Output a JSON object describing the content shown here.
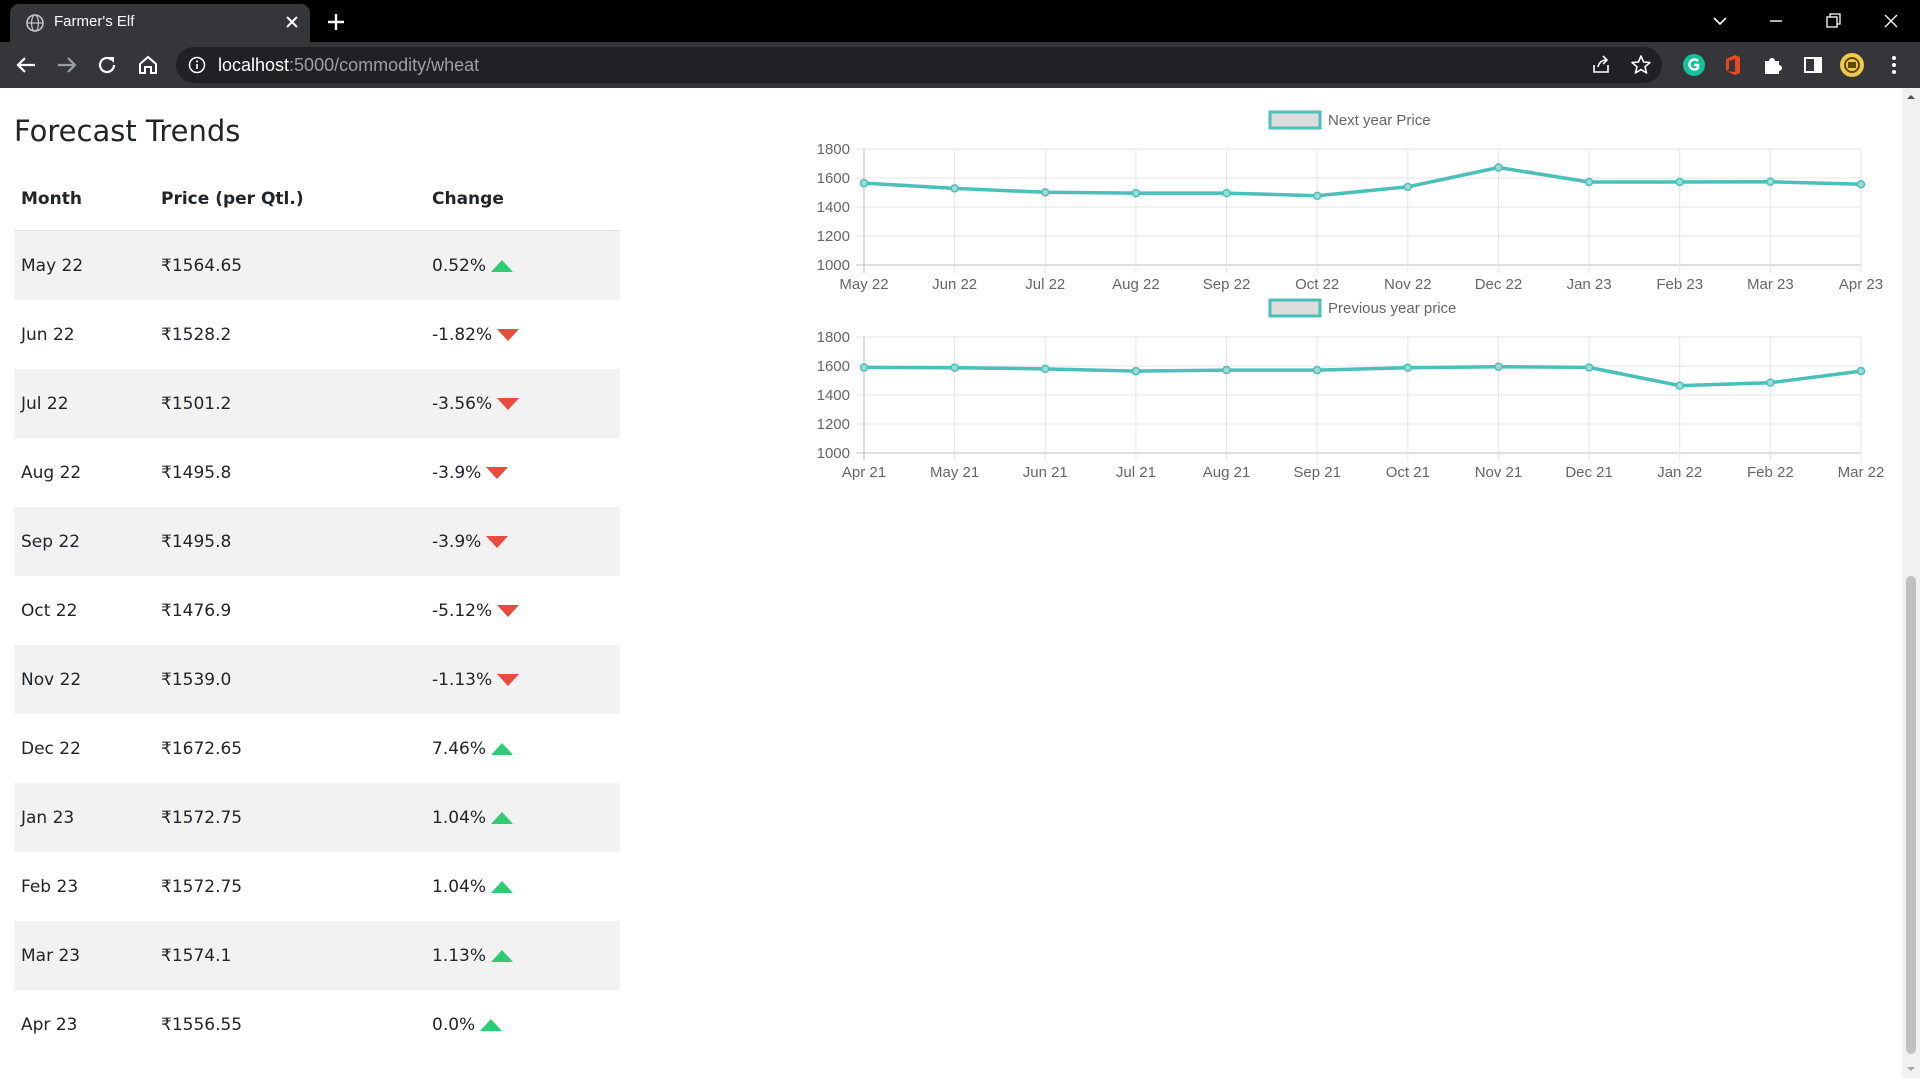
{
  "browser": {
    "tab_title": "Farmer's Elf",
    "url_host": "localhost",
    "url_path": ":5000/commodity/wheat"
  },
  "page": {
    "heading": "Forecast Trends",
    "table": {
      "headers": [
        "Month",
        "Price (per Qtl.)",
        "Change"
      ],
      "rows": [
        {
          "month": "May 22",
          "price": "₹1564.65",
          "change": "0.52%",
          "direction": "up"
        },
        {
          "month": "Jun 22",
          "price": "₹1528.2",
          "change": "-1.82%",
          "direction": "down"
        },
        {
          "month": "Jul 22",
          "price": "₹1501.2",
          "change": "-3.56%",
          "direction": "down"
        },
        {
          "month": "Aug 22",
          "price": "₹1495.8",
          "change": "-3.9%",
          "direction": "down"
        },
        {
          "month": "Sep 22",
          "price": "₹1495.8",
          "change": "-3.9%",
          "direction": "down"
        },
        {
          "month": "Oct 22",
          "price": "₹1476.9",
          "change": "-5.12%",
          "direction": "down"
        },
        {
          "month": "Nov 22",
          "price": "₹1539.0",
          "change": "-1.13%",
          "direction": "down"
        },
        {
          "month": "Dec 22",
          "price": "₹1672.65",
          "change": "7.46%",
          "direction": "up"
        },
        {
          "month": "Jan 23",
          "price": "₹1572.75",
          "change": "1.04%",
          "direction": "up"
        },
        {
          "month": "Feb 23",
          "price": "₹1572.75",
          "change": "1.04%",
          "direction": "up"
        },
        {
          "month": "Mar 23",
          "price": "₹1574.1",
          "change": "1.13%",
          "direction": "up"
        },
        {
          "month": "Apr 23",
          "price": "₹1556.55",
          "change": "0.0%",
          "direction": "up"
        }
      ]
    }
  },
  "colors": {
    "series": "#4bbfba",
    "up": "#2ecc71",
    "down": "#e74c3c"
  },
  "chart_data": [
    {
      "type": "line",
      "legend": "Next year Price",
      "legend_position": "top",
      "grid": true,
      "x": [
        "May 22",
        "Jun 22",
        "Jul 22",
        "Aug 22",
        "Sep 22",
        "Oct 22",
        "Nov 22",
        "Dec 22",
        "Jan 23",
        "Feb 23",
        "Mar 23",
        "Apr 23"
      ],
      "series": [
        {
          "name": "Next year Price",
          "values": [
            1564.65,
            1528.2,
            1501.2,
            1495.8,
            1495.8,
            1476.9,
            1539.0,
            1672.65,
            1572.75,
            1572.75,
            1574.1,
            1556.55
          ]
        }
      ],
      "ylim": [
        1000,
        1800
      ],
      "yticks": [
        1000,
        1200,
        1400,
        1600,
        1800
      ]
    },
    {
      "type": "line",
      "legend": "Previous year price",
      "legend_position": "top",
      "grid": true,
      "x": [
        "Apr 21",
        "May 21",
        "Jun 21",
        "Jul 21",
        "Aug 21",
        "Sep 21",
        "Oct 21",
        "Nov 21",
        "Dec 21",
        "Jan 22",
        "Feb 22",
        "Mar 22"
      ],
      "series": [
        {
          "name": "Previous year price",
          "values": [
            1590,
            1588,
            1580,
            1565,
            1572,
            1572,
            1588,
            1595,
            1590,
            1465,
            1485,
            1565
          ]
        }
      ],
      "ylim": [
        1000,
        1800
      ],
      "yticks": [
        1000,
        1200,
        1400,
        1600,
        1800
      ]
    }
  ]
}
